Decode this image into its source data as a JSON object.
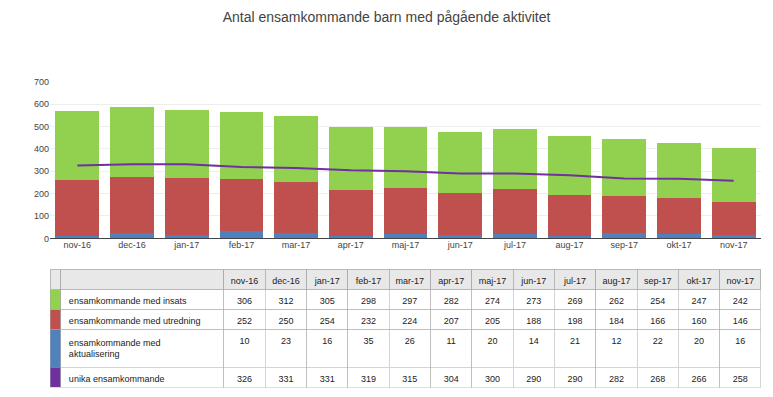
{
  "chart_data": {
    "type": "bar",
    "stacked": true,
    "title": "Antal ensamkommande barn med pågående aktivitet",
    "categories": [
      "nov-16",
      "dec-16",
      "jan-17",
      "feb-17",
      "mar-17",
      "apr-17",
      "maj-17",
      "jun-17",
      "jul-17",
      "aug-17",
      "sep-17",
      "okt-17",
      "nov-17"
    ],
    "series": [
      {
        "name": "ensamkommande med insats",
        "type": "bar",
        "color": "#92d050",
        "values": [
          306,
          312,
          305,
          298,
          297,
          282,
          274,
          273,
          269,
          262,
          254,
          247,
          242
        ]
      },
      {
        "name": "ensamkommande med utredning",
        "type": "bar",
        "color": "#c0504d",
        "values": [
          252,
          250,
          254,
          232,
          224,
          207,
          205,
          188,
          198,
          184,
          166,
          160,
          146
        ]
      },
      {
        "name": "ensamkommande med aktualisering",
        "type": "bar",
        "color": "#4f81bd",
        "values": [
          10,
          23,
          16,
          35,
          26,
          11,
          20,
          14,
          21,
          12,
          22,
          20,
          16
        ]
      },
      {
        "name": "unika ensamkommande",
        "type": "line",
        "color": "#7030a0",
        "values": [
          326,
          331,
          331,
          319,
          315,
          304,
          300,
          290,
          290,
          282,
          268,
          266,
          258
        ]
      }
    ],
    "ylim": [
      0,
      700
    ],
    "yticks": [
      0,
      100,
      200,
      300,
      400,
      500,
      600,
      700
    ],
    "grid": true,
    "data_labels": true
  }
}
